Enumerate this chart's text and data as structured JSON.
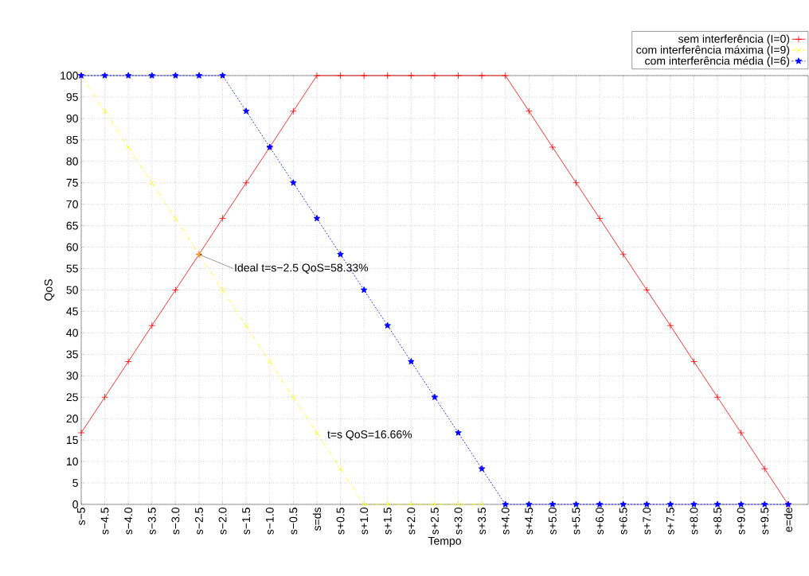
{
  "chart_data": {
    "type": "line",
    "xlabel": "Tempo",
    "ylabel": "QoS",
    "categories": [
      "s−5",
      "s−4.5",
      "s−4.0",
      "s−3.5",
      "s−3.0",
      "s−2.5",
      "s−2.0",
      "s−1.5",
      "s−1.0",
      "s−0.5",
      "s=ds",
      "s+0.5",
      "s+1.0",
      "s+1.5",
      "s+2.0",
      "s+2.5",
      "s+3.0",
      "s+3.5",
      "s+4.0",
      "s+4.5",
      "s+5.0",
      "s+5.5",
      "s+6.0",
      "s+6.5",
      "s+7.0",
      "s+7.5",
      "s+8.0",
      "s+8.5",
      "s+9.0",
      "s+9.5",
      "e=de"
    ],
    "series": [
      {
        "name": "sem interferência (I=0)",
        "color": "#ff0000",
        "marker": "plus",
        "line_style": "solid",
        "values": [
          16.7,
          25,
          33.3,
          41.7,
          50,
          58.3,
          66.7,
          75,
          83.3,
          91.7,
          100,
          100,
          100,
          100,
          100,
          100,
          100,
          100,
          100,
          91.7,
          83.3,
          75,
          66.7,
          58.3,
          50,
          41.7,
          33.3,
          25,
          16.7,
          8.3,
          0
        ]
      },
      {
        "name": "com interferência máxima (I=9)",
        "color": "#ffff00",
        "marker": "cross",
        "line_style": "dashed",
        "values": [
          100,
          91.7,
          83.3,
          75,
          66.7,
          58.3,
          50,
          41.7,
          33.3,
          25,
          16.7,
          8.3,
          0,
          0,
          0,
          0,
          0,
          0,
          null,
          null,
          null,
          null,
          null,
          null,
          null,
          null,
          null,
          null,
          null,
          null,
          null
        ]
      },
      {
        "name": "com interferência média (I=6)",
        "color": "#0000ff",
        "marker": "star",
        "line_style": "dotted",
        "values": [
          100,
          100,
          100,
          100,
          100,
          100,
          100,
          91.7,
          83.3,
          75,
          66.7,
          58.3,
          50,
          41.7,
          33.3,
          25,
          16.7,
          8.3,
          0,
          0,
          0,
          0,
          0,
          0,
          0,
          0,
          0,
          0,
          0,
          0,
          0
        ]
      }
    ],
    "ylim": [
      0,
      100
    ],
    "yticks": [
      0,
      5,
      10,
      15,
      20,
      25,
      30,
      35,
      40,
      45,
      50,
      55,
      60,
      65,
      70,
      75,
      80,
      85,
      90,
      95,
      100
    ],
    "grid": true,
    "legend": "top right",
    "annotations": [
      {
        "text": "Ideal t=s−2.5 QoS=58.33%",
        "x": "s−2.5",
        "y": 58.3
      },
      {
        "text": "t=s QoS=16.66%",
        "x": "s=ds",
        "y": 16.7
      }
    ]
  }
}
